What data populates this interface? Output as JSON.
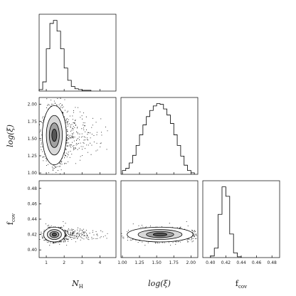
{
  "chart_data": {
    "type": "corner",
    "variables": [
      {
        "key": "NH",
        "label_main": "N",
        "label_sub": "H",
        "italic": true,
        "range": [
          0.6,
          4.9
        ],
        "ticks": [
          1,
          2,
          3,
          4
        ]
      },
      {
        "key": "logxi",
        "label_main": "log(ξ)",
        "label_sub": "",
        "italic": true,
        "range": [
          0.98,
          2.1
        ],
        "ticks": [
          1.0,
          1.25,
          1.5,
          1.75,
          2.0
        ]
      },
      {
        "key": "fcov",
        "label_main": "f",
        "label_sub": "cov",
        "italic": false,
        "range": [
          0.39,
          0.49
        ],
        "ticks": [
          0.4,
          0.42,
          0.44,
          0.46,
          0.48
        ]
      }
    ],
    "tick_labels": {
      "NH": [
        "1",
        "2",
        "3",
        "4"
      ],
      "logxi": [
        "1.00",
        "1.25",
        "1.50",
        "1.75",
        "2.00"
      ],
      "fcov": [
        "0.40",
        "0.42",
        "0.44",
        "0.46",
        "0.48"
      ]
    },
    "histograms": {
      "NH": {
        "bin_edges": [
          0.6,
          0.8,
          1.0,
          1.2,
          1.4,
          1.6,
          1.8,
          2.0,
          2.2,
          2.4,
          2.6,
          2.8,
          3.0,
          3.2,
          3.5
        ],
        "counts": [
          2,
          12,
          55,
          88,
          92,
          78,
          55,
          30,
          14,
          6,
          3,
          2,
          1,
          1
        ]
      },
      "logxi": {
        "bin_edges": [
          1.0,
          1.05,
          1.1,
          1.15,
          1.2,
          1.25,
          1.3,
          1.35,
          1.4,
          1.45,
          1.5,
          1.55,
          1.6,
          1.65,
          1.7,
          1.75,
          1.8,
          1.85,
          1.9,
          1.95,
          2.0,
          2.05
        ],
        "counts": [
          5,
          8,
          15,
          25,
          38,
          52,
          65,
          76,
          84,
          90,
          93,
          92,
          86,
          78,
          67,
          52,
          38,
          24,
          12,
          5,
          2
        ]
      },
      "fcov": {
        "bin_edges": [
          0.4,
          0.405,
          0.41,
          0.415,
          0.42,
          0.425,
          0.43,
          0.435,
          0.44
        ],
        "counts": [
          2,
          12,
          55,
          90,
          78,
          30,
          6,
          1
        ]
      }
    },
    "joint": [
      {
        "x": "NH",
        "y": "logxi",
        "center": [
          1.45,
          1.55
        ],
        "sigma": [
          0.28,
          0.18
        ],
        "tail_x": 3.5
      },
      {
        "x": "NH",
        "y": "fcov",
        "center": [
          1.45,
          0.42
        ],
        "sigma": [
          0.25,
          0.004
        ],
        "tail_x": 3.5
      },
      {
        "x": "logxi",
        "y": "fcov",
        "center": [
          1.55,
          0.42
        ],
        "sigma": [
          0.2,
          0.004
        ],
        "tail_x": 2.0
      }
    ],
    "grid": false,
    "legend": "none"
  }
}
